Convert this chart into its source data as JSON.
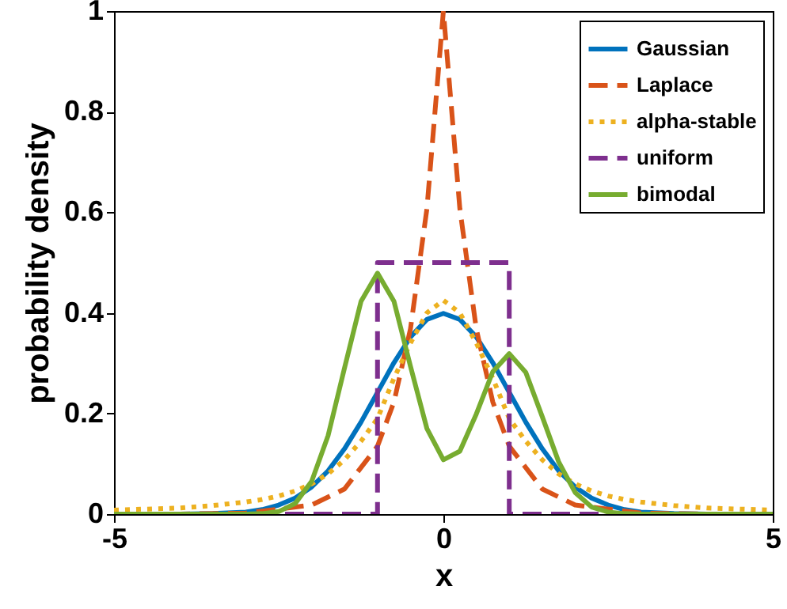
{
  "chart_data": {
    "type": "line",
    "xlabel": "x",
    "ylabel": "probability density",
    "xlim": [
      -5,
      5
    ],
    "ylim": [
      0,
      1
    ],
    "xticks": [
      -5,
      0,
      5
    ],
    "yticks": [
      0,
      0.2,
      0.4,
      0.6,
      0.8,
      1
    ],
    "grid": false,
    "legend": "top right",
    "marker": "none",
    "series": [
      {
        "name": "Gaussian",
        "color": "#0072bd",
        "line_style": "solid",
        "x": [
          -5,
          -4,
          -3.5,
          -3,
          -2.75,
          -2.5,
          -2.25,
          -2,
          -1.75,
          -1.5,
          -1.25,
          -1,
          -0.75,
          -0.5,
          -0.25,
          0,
          0.25,
          0.5,
          0.75,
          1,
          1.25,
          1.5,
          1.75,
          2,
          2.25,
          2.5,
          2.75,
          3,
          3.5,
          4,
          5
        ],
        "values": [
          0,
          0,
          0.001,
          0.004,
          0.009,
          0.018,
          0.032,
          0.054,
          0.086,
          0.13,
          0.183,
          0.242,
          0.301,
          0.352,
          0.387,
          0.399,
          0.387,
          0.352,
          0.301,
          0.242,
          0.183,
          0.13,
          0.086,
          0.054,
          0.032,
          0.018,
          0.009,
          0.004,
          0.001,
          0,
          0
        ]
      },
      {
        "name": "Laplace",
        "color": "#d95319",
        "line_style": "dashed",
        "x": [
          -5,
          -4,
          -3,
          -2,
          -1.5,
          -1,
          -0.75,
          -0.5,
          -0.25,
          0,
          0.25,
          0.5,
          0.75,
          1,
          1.5,
          2,
          3,
          4,
          5
        ],
        "values": [
          0,
          0,
          0.002,
          0.018,
          0.05,
          0.135,
          0.223,
          0.368,
          0.607,
          1,
          0.607,
          0.368,
          0.223,
          0.135,
          0.05,
          0.018,
          0.002,
          0,
          0
        ]
      },
      {
        "name": "alpha-stable",
        "color": "#edb120",
        "line_style": "dotted",
        "x": [
          -5,
          -4,
          -3.5,
          -3,
          -2.75,
          -2.5,
          -2.25,
          -2,
          -1.75,
          -1.5,
          -1.25,
          -1,
          -0.75,
          -0.5,
          -0.25,
          0,
          0.25,
          0.5,
          0.75,
          1,
          1.25,
          1.5,
          1.75,
          2,
          2.25,
          2.5,
          2.75,
          3,
          3.5,
          4,
          5
        ],
        "values": [
          0.008,
          0.012,
          0.017,
          0.024,
          0.029,
          0.036,
          0.046,
          0.06,
          0.08,
          0.108,
          0.145,
          0.19,
          0.27,
          0.34,
          0.4,
          0.425,
          0.4,
          0.34,
          0.27,
          0.19,
          0.145,
          0.108,
          0.08,
          0.06,
          0.046,
          0.036,
          0.029,
          0.024,
          0.017,
          0.012,
          0.008
        ]
      },
      {
        "name": "uniform",
        "color": "#7e2f8e",
        "line_style": "dashed",
        "x": [
          -5,
          -1,
          -1,
          1,
          1,
          5
        ],
        "values": [
          0,
          0,
          0.5,
          0.5,
          0,
          0
        ]
      },
      {
        "name": "bimodal",
        "color": "#77ac30",
        "line_style": "solid",
        "x": [
          -5,
          -4,
          -3.5,
          -3,
          -2.75,
          -2.5,
          -2.25,
          -2,
          -1.75,
          -1.5,
          -1.25,
          -1,
          -0.75,
          -0.5,
          -0.25,
          0,
          0.25,
          0.5,
          0.75,
          1,
          1.25,
          1.5,
          1.75,
          2,
          2.25,
          2.5,
          2.75,
          3,
          3.5,
          4,
          5
        ],
        "values": [
          0,
          0,
          0,
          0,
          0.001,
          0.005,
          0.021,
          0.065,
          0.156,
          0.291,
          0.423,
          0.479,
          0.423,
          0.294,
          0.17,
          0.108,
          0.125,
          0.199,
          0.283,
          0.319,
          0.282,
          0.194,
          0.104,
          0.043,
          0.014,
          0.004,
          0.001,
          0,
          0,
          0,
          0
        ]
      }
    ]
  }
}
